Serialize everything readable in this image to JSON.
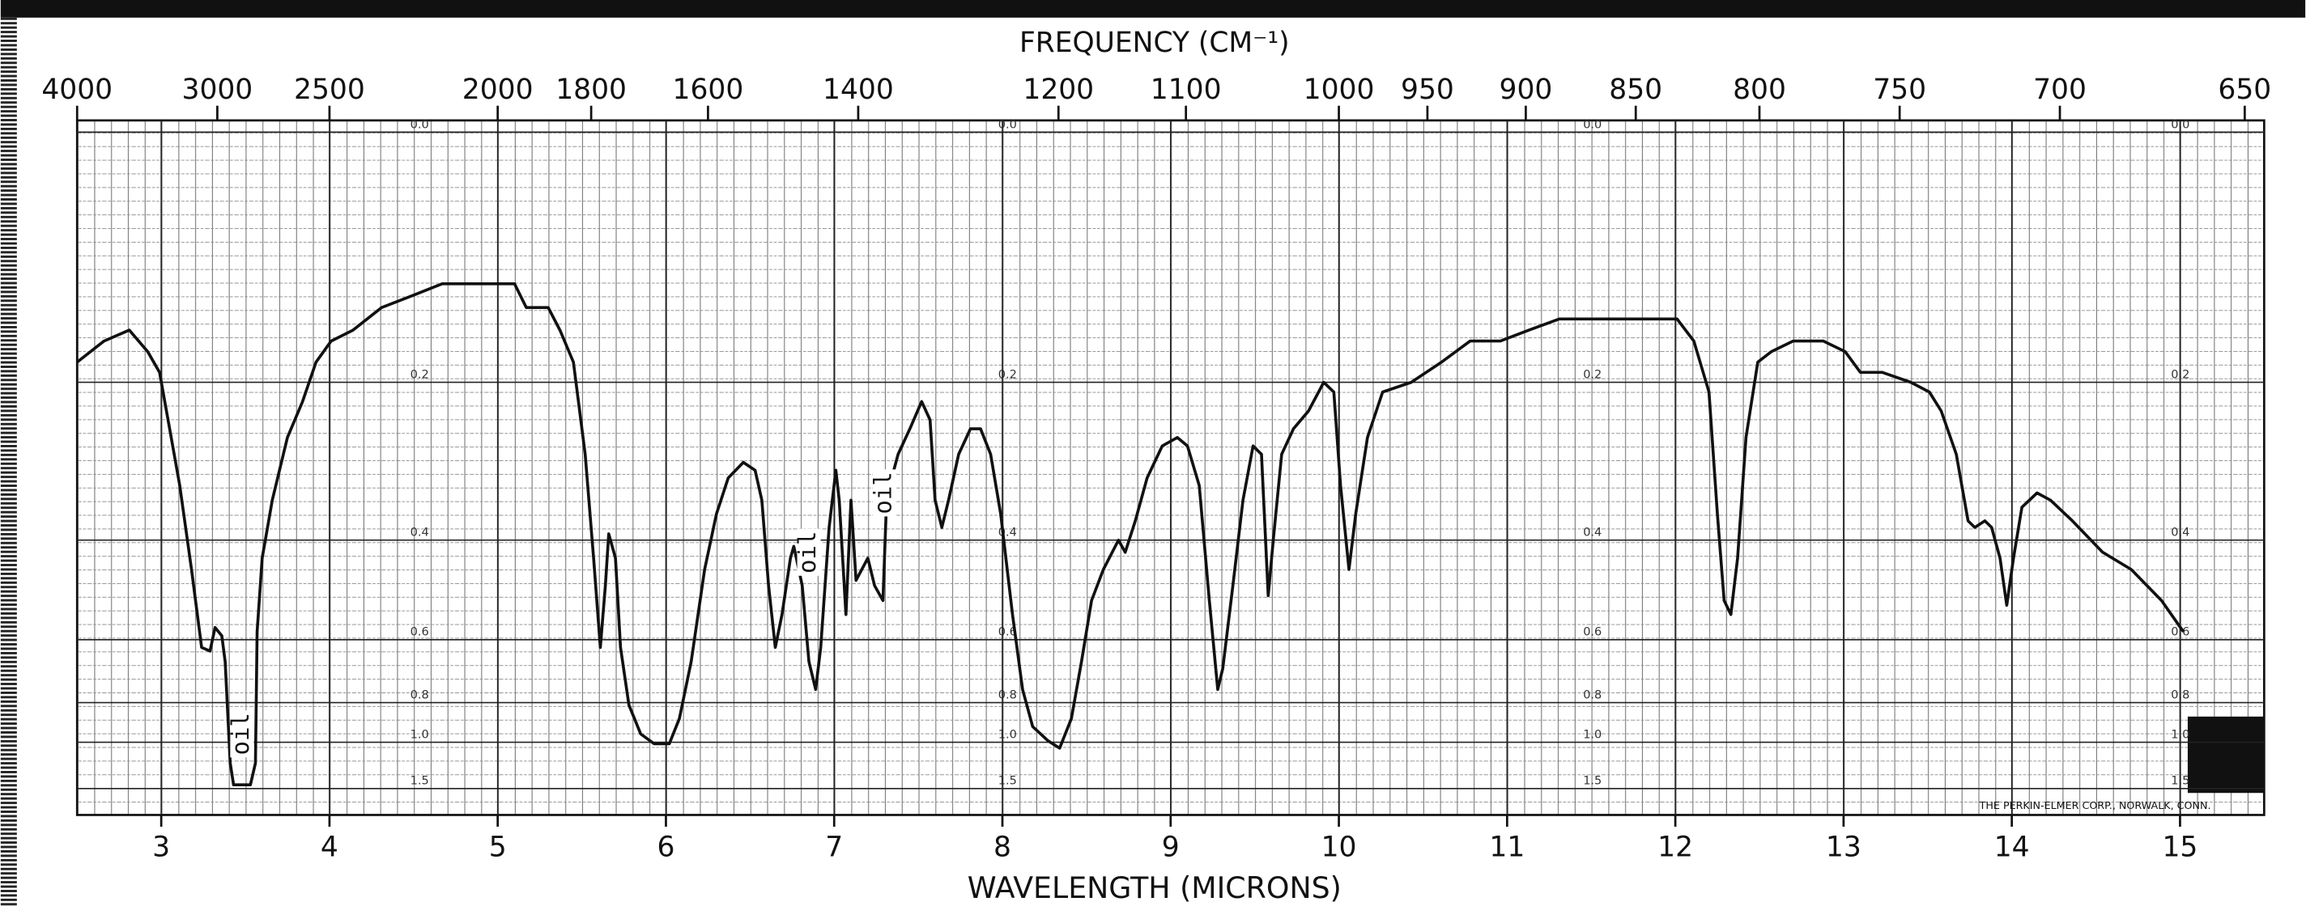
{
  "chart_data": {
    "type": "line",
    "title": "FREQUENCY (CM⁻¹)",
    "xlabel": "WAVELENGTH (MICRONS)",
    "color": "#111111",
    "grid": true,
    "yscale": "absorbance",
    "xlim": [
      2.5,
      15.5
    ],
    "xticks": [
      3,
      4,
      5,
      6,
      7,
      8,
      9,
      10,
      11,
      12,
      13,
      14,
      15
    ],
    "x2ticks": [
      4000,
      3000,
      2500,
      2000,
      1800,
      1600,
      1400,
      1200,
      1100,
      1000,
      950,
      900,
      850,
      800,
      750,
      700,
      650
    ],
    "ylim": [
      0,
      2
    ],
    "yticks": [
      {
        "value": 0,
        "label": "0.0"
      },
      0.2,
      0.4,
      0.6,
      0.8,
      {
        "value": 1,
        "label": "1.0"
      },
      1.5
    ],
    "annotations": [
      {
        "text": "oil",
        "x": 3.48,
        "y": 0.95
      },
      {
        "text": "oil",
        "x": 6.85,
        "y": 0.42
      },
      {
        "text": "oil",
        "x": 7.3,
        "y": 0.33
      }
    ],
    "footer": "THE PERKIN-ELMER CORP., NORWALK, CONN.",
    "x": [
      2.5,
      2.66,
      2.81,
      2.92,
      2.99,
      3.05,
      3.11,
      3.18,
      3.24,
      3.29,
      3.32,
      3.36,
      3.38,
      3.41,
      3.43,
      3.53,
      3.56,
      3.57,
      3.6,
      3.66,
      3.75,
      3.84,
      3.92,
      4.01,
      4.14,
      4.31,
      4.49,
      4.67,
      4.84,
      5.02,
      5.1,
      5.17,
      5.23,
      5.3,
      5.37,
      5.45,
      5.52,
      5.57,
      5.61,
      5.64,
      5.66,
      5.7,
      5.73,
      5.78,
      5.85,
      5.93,
      6.02,
      6.08,
      6.15,
      6.23,
      6.3,
      6.37,
      6.46,
      6.53,
      6.57,
      6.61,
      6.65,
      6.69,
      6.74,
      6.76,
      6.81,
      6.85,
      6.89,
      6.92,
      6.97,
      7.01,
      7.03,
      7.07,
      7.1,
      7.13,
      7.2,
      7.24,
      7.29,
      7.31,
      7.33,
      7.38,
      7.45,
      7.52,
      7.57,
      7.6,
      7.64,
      7.68,
      7.74,
      7.81,
      7.87,
      7.93,
      7.99,
      8.06,
      8.12,
      8.18,
      8.27,
      8.34,
      8.41,
      8.47,
      8.53,
      8.6,
      8.69,
      8.73,
      8.79,
      8.86,
      8.95,
      9.04,
      9.1,
      9.17,
      9.23,
      9.28,
      9.31,
      9.37,
      9.43,
      9.49,
      9.54,
      9.58,
      9.61,
      9.66,
      9.73,
      9.82,
      9.91,
      9.97,
      10.01,
      10.06,
      10.1,
      10.17,
      10.26,
      10.43,
      10.61,
      10.78,
      10.96,
      11.13,
      11.31,
      11.48,
      11.66,
      11.83,
      12.01,
      12.11,
      12.2,
      12.25,
      12.29,
      12.33,
      12.37,
      12.42,
      12.49,
      12.57,
      12.7,
      12.88,
      13.01,
      13.1,
      13.23,
      13.4,
      13.51,
      13.58,
      13.67,
      13.74,
      13.78,
      13.84,
      13.88,
      13.93,
      13.97,
      14.01,
      14.06,
      14.15,
      14.23,
      14.36,
      14.54,
      14.71,
      14.89,
      15.02
    ],
    "values": [
      0.18,
      0.16,
      0.15,
      0.17,
      0.19,
      0.25,
      0.32,
      0.45,
      0.62,
      0.63,
      0.57,
      0.59,
      0.66,
      1.16,
      1.43,
      1.43,
      1.16,
      0.58,
      0.43,
      0.34,
      0.26,
      0.22,
      0.18,
      0.16,
      0.15,
      0.13,
      0.12,
      0.11,
      0.11,
      0.11,
      0.11,
      0.13,
      0.13,
      0.13,
      0.15,
      0.18,
      0.28,
      0.43,
      0.62,
      0.48,
      0.39,
      0.43,
      0.62,
      0.81,
      0.95,
      1.01,
      1.01,
      0.87,
      0.66,
      0.45,
      0.36,
      0.31,
      0.29,
      0.3,
      0.34,
      0.48,
      0.62,
      0.54,
      0.43,
      0.41,
      0.48,
      0.66,
      0.75,
      0.62,
      0.38,
      0.3,
      0.34,
      0.54,
      0.34,
      0.47,
      0.43,
      0.48,
      0.51,
      0.35,
      0.32,
      0.28,
      0.25,
      0.22,
      0.24,
      0.34,
      0.38,
      0.34,
      0.28,
      0.25,
      0.25,
      0.28,
      0.36,
      0.54,
      0.75,
      0.91,
      0.99,
      1.04,
      0.87,
      0.66,
      0.51,
      0.45,
      0.4,
      0.42,
      0.37,
      0.31,
      0.27,
      0.26,
      0.27,
      0.32,
      0.51,
      0.75,
      0.68,
      0.48,
      0.34,
      0.27,
      0.28,
      0.5,
      0.4,
      0.28,
      0.25,
      0.23,
      0.2,
      0.21,
      0.32,
      0.45,
      0.36,
      0.26,
      0.21,
      0.2,
      0.18,
      0.16,
      0.16,
      0.15,
      0.14,
      0.14,
      0.14,
      0.14,
      0.14,
      0.16,
      0.21,
      0.36,
      0.51,
      0.54,
      0.43,
      0.26,
      0.18,
      0.17,
      0.16,
      0.16,
      0.17,
      0.19,
      0.19,
      0.2,
      0.21,
      0.23,
      0.28,
      0.37,
      0.38,
      0.37,
      0.38,
      0.43,
      0.52,
      0.43,
      0.35,
      0.33,
      0.34,
      0.37,
      0.42,
      0.45,
      0.51,
      0.58
    ]
  }
}
